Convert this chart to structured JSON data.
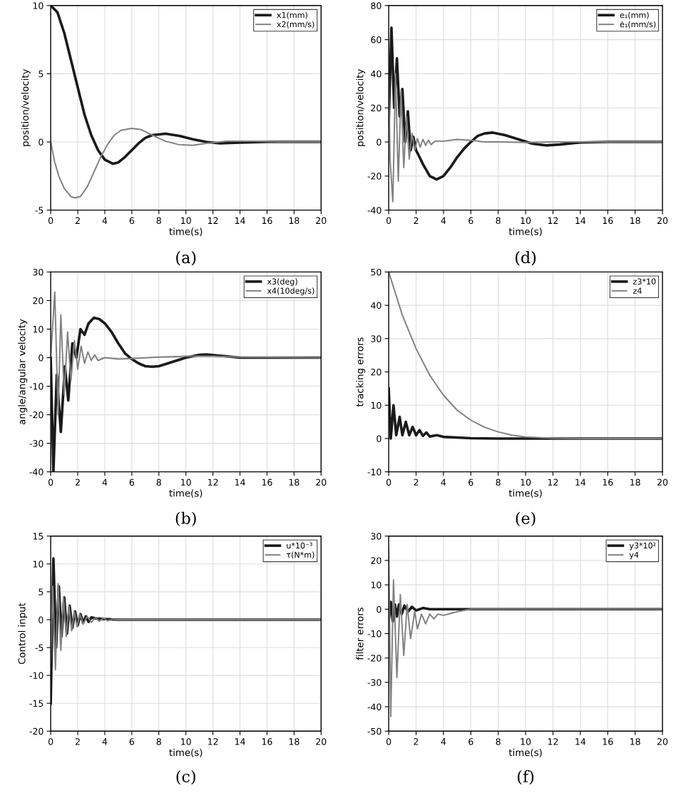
{
  "chart_data": [
    {
      "type": "line",
      "xlabel": "time(s)",
      "ylabel": "position/velocity",
      "annotations": [
        "(a)"
      ],
      "xlim": [
        0,
        20
      ],
      "xticks": [
        0,
        2,
        4,
        6,
        8,
        10,
        12,
        14,
        16,
        18,
        20
      ],
      "ylim": [
        -5,
        10
      ],
      "yticks": [
        -5,
        0,
        5,
        10
      ],
      "grid": true,
      "legend": "top right",
      "series": [
        {
          "name": "x1(mm)",
          "color": "#1a1a1a",
          "x": [
            0,
            0.5,
            1,
            1.5,
            2,
            2.5,
            3,
            3.5,
            4,
            4.6,
            5,
            5.5,
            6,
            6.5,
            7,
            7.5,
            8.5,
            9.5,
            10.5,
            11.5,
            12.5,
            14,
            16,
            20
          ],
          "values": [
            10,
            9.5,
            8,
            6,
            4,
            2,
            0.5,
            -0.6,
            -1.3,
            -1.6,
            -1.5,
            -1.1,
            -0.6,
            -0.1,
            0.3,
            0.5,
            0.6,
            0.45,
            0.2,
            0,
            -0.1,
            -0.05,
            0,
            0
          ]
        },
        {
          "name": "x2(mm/s)",
          "color": "#808080",
          "x": [
            0,
            0.3,
            0.6,
            1,
            1.5,
            1.8,
            2.2,
            2.7,
            3.2,
            3.7,
            4.2,
            4.7,
            5.2,
            6,
            6.7,
            7.5,
            8.5,
            9.5,
            10.5,
            11.5,
            13,
            15,
            17,
            20
          ],
          "values": [
            0,
            -1.5,
            -2.5,
            -3.4,
            -4.0,
            -4.1,
            -4.0,
            -3.3,
            -2.2,
            -1.1,
            -0.2,
            0.5,
            0.85,
            1.0,
            0.9,
            0.5,
            0.05,
            -0.2,
            -0.25,
            -0.1,
            0.05,
            0.05,
            0,
            0
          ]
        }
      ]
    },
    {
      "type": "line",
      "xlabel": "time(s)",
      "ylabel": "position/velocity",
      "annotations": [
        "(d)"
      ],
      "xlim": [
        0,
        20
      ],
      "xticks": [
        0,
        2,
        4,
        6,
        8,
        10,
        12,
        14,
        16,
        18,
        20
      ],
      "ylim": [
        -40,
        80
      ],
      "yticks": [
        -40,
        -20,
        0,
        20,
        40,
        60,
        80
      ],
      "grid": true,
      "legend": "top right",
      "series": [
        {
          "name": "e₁(mm)",
          "color": "#1a1a1a",
          "x": [
            0,
            0.2,
            0.4,
            0.6,
            0.8,
            1.0,
            1.2,
            1.4,
            1.6,
            1.8,
            2.0,
            2.2,
            2.5,
            3,
            3.5,
            4,
            4.5,
            5,
            5.5,
            6,
            6.5,
            7,
            7.6,
            8.5,
            9.5,
            10.5,
            11.5,
            12.5,
            14,
            16,
            20
          ],
          "values": [
            10,
            67,
            20,
            49,
            15,
            31,
            0,
            18,
            -5,
            3,
            -5,
            -8,
            -13,
            -20,
            -22,
            -20,
            -15,
            -9,
            -4,
            0,
            3.5,
            5,
            5.5,
            4,
            1.5,
            -1,
            -2,
            -1.5,
            -0.3,
            0,
            0
          ]
        },
        {
          "name": "ė₁(mm/s)",
          "color": "#808080",
          "x": [
            0,
            0.1,
            0.3,
            0.5,
            0.7,
            0.9,
            1.1,
            1.3,
            1.5,
            1.7,
            1.9,
            2.1,
            2.3,
            2.5,
            2.7,
            2.9,
            3.1,
            3.4,
            4,
            5,
            6,
            7,
            8,
            10,
            12,
            20
          ],
          "values": [
            40,
            -10,
            -35,
            40,
            -23,
            30,
            -15,
            15,
            -10,
            5,
            -5,
            2,
            -3,
            1.5,
            -2,
            1,
            -1.5,
            0.5,
            0.5,
            1.5,
            1,
            0,
            0,
            -0.3,
            0,
            0
          ]
        }
      ]
    },
    {
      "type": "line",
      "xlabel": "time(s)",
      "ylabel": "angle/angular velocity",
      "annotations": [
        "(b)"
      ],
      "xlim": [
        0,
        20
      ],
      "xticks": [
        0,
        2,
        4,
        6,
        8,
        10,
        12,
        14,
        16,
        18,
        20
      ],
      "ylim": [
        -40,
        30
      ],
      "yticks": [
        -40,
        -30,
        -20,
        -10,
        0,
        10,
        20,
        30
      ],
      "grid": true,
      "legend": "top right",
      "series": [
        {
          "name": "x3(deg)",
          "color": "#1a1a1a",
          "x": [
            0,
            0.2,
            0.45,
            0.75,
            1.05,
            1.3,
            1.6,
            1.9,
            2.2,
            2.5,
            2.8,
            3.2,
            3.6,
            4,
            4.5,
            5,
            5.5,
            6,
            6.5,
            7,
            7.5,
            8,
            9,
            10,
            11,
            11.5,
            12.5,
            14,
            16,
            20
          ],
          "values": [
            0,
            -40,
            -6,
            -26,
            -3,
            -15,
            5,
            0,
            10,
            8,
            12,
            14,
            13.5,
            12,
            9,
            5,
            1.5,
            -0.5,
            -2,
            -3,
            -3.2,
            -3,
            -1.5,
            0,
            1,
            1.1,
            0.7,
            0,
            0,
            0
          ]
        },
        {
          "name": "x4(10deg/s)",
          "color": "#808080",
          "x": [
            0,
            0.3,
            0.55,
            0.75,
            1.0,
            1.25,
            1.5,
            1.75,
            2.0,
            2.25,
            2.5,
            2.75,
            3.0,
            3.25,
            3.5,
            4,
            5,
            6,
            8,
            10,
            12,
            14,
            20
          ],
          "values": [
            0,
            23,
            -20,
            15,
            -13,
            9,
            -8,
            6,
            -4,
            4,
            -2,
            2,
            -1,
            1,
            -1,
            0,
            -0.5,
            -0.3,
            0.2,
            0.5,
            0.5,
            0.2,
            0
          ]
        }
      ]
    },
    {
      "type": "line",
      "xlabel": "time(s)",
      "ylabel": "tracking errors",
      "annotations": [
        "(e)"
      ],
      "xlim": [
        0,
        20
      ],
      "xticks": [
        0,
        2,
        4,
        6,
        8,
        10,
        12,
        14,
        16,
        18,
        20
      ],
      "ylim": [
        -10,
        50
      ],
      "yticks": [
        -10,
        0,
        10,
        20,
        30,
        40,
        50
      ],
      "grid": true,
      "legend": "top right",
      "series": [
        {
          "name": "z3*10",
          "color": "#1a1a1a",
          "x": [
            0,
            0.15,
            0.35,
            0.55,
            0.8,
            1.0,
            1.25,
            1.5,
            1.75,
            2,
            2.25,
            2.5,
            2.75,
            3,
            3.5,
            4,
            5,
            6,
            8,
            20
          ],
          "values": [
            15,
            0,
            10,
            1,
            6.5,
            1,
            5,
            1,
            3.5,
            1,
            2.5,
            0.8,
            1.8,
            0.6,
            1,
            0.5,
            0.3,
            0.1,
            0,
            0
          ]
        },
        {
          "name": "z4",
          "color": "#808080",
          "x": [
            0,
            1,
            2,
            3,
            4,
            5,
            6,
            7,
            8,
            9,
            10,
            12,
            14,
            20
          ],
          "values": [
            50,
            37,
            27,
            19,
            13,
            8.5,
            5.5,
            3.4,
            2,
            1,
            0.5,
            0.1,
            0,
            0
          ]
        }
      ]
    },
    {
      "type": "line",
      "xlabel": "time(s)",
      "ylabel": "Control input",
      "annotations": [
        "(c)"
      ],
      "xlim": [
        0,
        20
      ],
      "xticks": [
        0,
        2,
        4,
        6,
        8,
        10,
        12,
        14,
        16,
        18,
        20
      ],
      "ylim": [
        -20,
        15
      ],
      "yticks": [
        -20,
        -15,
        -10,
        -5,
        0,
        5,
        10,
        15
      ],
      "grid": true,
      "legend": "top right",
      "series": [
        {
          "name": "u*10⁻³",
          "color": "#1a1a1a",
          "x": [
            0,
            0.2,
            0.4,
            0.6,
            0.8,
            1.0,
            1.2,
            1.4,
            1.6,
            1.8,
            2,
            2.2,
            2.4,
            2.6,
            2.8,
            3,
            3.4,
            4,
            5,
            20
          ],
          "values": [
            -15,
            11,
            -5,
            6,
            -3,
            4,
            -2.5,
            2.5,
            -1.5,
            1.5,
            -1,
            1,
            -0.6,
            0.6,
            -0.4,
            0.4,
            0.2,
            0.1,
            0,
            0
          ]
        },
        {
          "name": "τ(N*m)",
          "color": "#808080",
          "x": [
            0,
            0.15,
            0.35,
            0.55,
            0.75,
            0.95,
            1.15,
            1.35,
            1.55,
            1.75,
            1.95,
            2.15,
            2.4,
            2.7,
            3,
            3.3,
            3.6,
            3.9,
            4.2,
            4.6,
            5,
            20
          ],
          "values": [
            -8,
            6,
            -9,
            6.5,
            -5.5,
            4,
            -3,
            2.5,
            -2,
            1.5,
            -1.3,
            1,
            -0.8,
            0.6,
            -0.5,
            0.4,
            -0.3,
            0.3,
            -0.2,
            0.1,
            0,
            0
          ]
        }
      ]
    },
    {
      "type": "line",
      "xlabel": "time(s)",
      "ylabel": "filter errors",
      "annotations": [
        "(f)"
      ],
      "xlim": [
        0,
        20
      ],
      "xticks": [
        0,
        2,
        4,
        6,
        8,
        10,
        12,
        14,
        16,
        18,
        20
      ],
      "ylim": [
        -50,
        30
      ],
      "yticks": [
        -50,
        -40,
        -30,
        -20,
        -10,
        0,
        10,
        20,
        30
      ],
      "grid": true,
      "legend": "top right",
      "series": [
        {
          "name": "y3*10²",
          "color": "#1a1a1a",
          "x": [
            0,
            0.15,
            0.3,
            0.45,
            0.6,
            0.75,
            0.95,
            1.15,
            1.4,
            1.7,
            2,
            2.5,
            3,
            20
          ],
          "values": [
            -5,
            3,
            -5,
            2,
            -3,
            2,
            -2,
            1.5,
            -1,
            1,
            -0.5,
            0.5,
            0,
            0
          ]
        },
        {
          "name": "y4",
          "color": "#808080",
          "x": [
            0,
            0.15,
            0.35,
            0.6,
            0.85,
            1.1,
            1.35,
            1.6,
            1.9,
            2.1,
            2.4,
            2.7,
            3,
            3.3,
            3.6,
            4,
            5,
            6,
            20
          ],
          "values": [
            25,
            -44,
            12,
            -28,
            6,
            -19,
            2,
            -12,
            -1,
            -8,
            -2,
            -6,
            -2,
            -4,
            -2,
            -2.5,
            -1,
            0,
            0
          ]
        }
      ]
    }
  ]
}
